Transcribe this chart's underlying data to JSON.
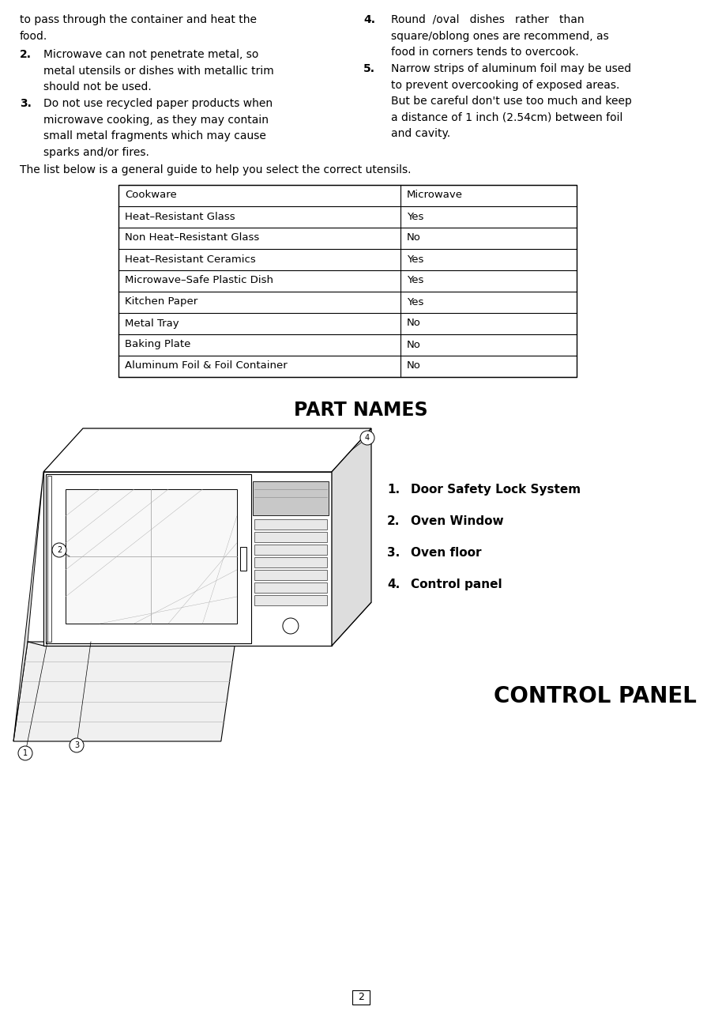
{
  "bg_color": "#ffffff",
  "text_color": "#000000",
  "left_items": [
    {
      "num": "",
      "text": "to pass through the container and heat the\nfood.",
      "lines": 2
    },
    {
      "num": "2.",
      "text": "Microwave can not penetrate metal, so\nmetal utensils or dishes with metallic trim\nshould not be used.",
      "lines": 3
    },
    {
      "num": "3.",
      "text": "Do not use recycled paper products when\nmicrowave cooking, as they may contain\nsmall metal fragments which may cause\nsparks and/or fires.",
      "lines": 4
    }
  ],
  "right_items": [
    {
      "num": "4.",
      "text": "Round  /oval   dishes   rather   than\nsquare/oblong ones are recommend, as\nfood in corners tends to overcook.",
      "lines": 3
    },
    {
      "num": "5.",
      "text": "Narrow strips of aluminum foil may be used\nto prevent overcooking of exposed areas.\nBut be careful don't use too much and keep\na distance of 1 inch (2.54cm) between foil\nand cavity.",
      "lines": 5
    }
  ],
  "guide_text": "The list below is a general guide to help you select the correct utensils.",
  "table_headers": [
    "Cookware",
    "Microwave"
  ],
  "table_rows": [
    [
      "Heat–Resistant Glass",
      "Yes"
    ],
    [
      "Non Heat–Resistant Glass",
      "No"
    ],
    [
      "Heat–Resistant Ceramics",
      "Yes"
    ],
    [
      "Microwave–Safe Plastic Dish",
      "Yes"
    ],
    [
      "Kitchen Paper",
      "Yes"
    ],
    [
      "Metal Tray",
      "No"
    ],
    [
      "Baking Plate",
      "No"
    ],
    [
      "Aluminum Foil & Foil Container",
      "No"
    ]
  ],
  "part_names_title": "PART NAMES",
  "part_names_list": [
    "Door Safety Lock System",
    "Oven Window",
    "Oven floor",
    "Control panel"
  ],
  "control_panel_title": "CONTROL PANEL",
  "page_number": "2",
  "fs_body": 10,
  "fs_table": 9.5,
  "fs_part_title": 17,
  "fs_control_title": 20,
  "fs_page": 9
}
